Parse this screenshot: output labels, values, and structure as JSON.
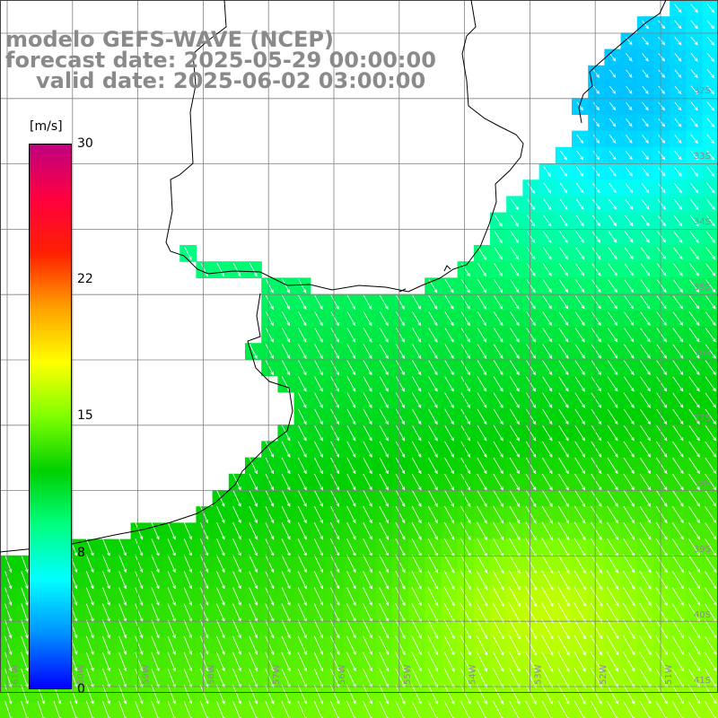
{
  "title": {
    "line1": "modelo GEFS-WAVE (NCEP)",
    "line2": "forecast date: 2025-05-29 00:00:00",
    "line3": "valid date: 2025-06-02 03:00:00"
  },
  "colorbar": {
    "unit": "[m/s]",
    "ticks": [
      "30",
      "22",
      "15",
      "8",
      "0"
    ],
    "tick_values": [
      30,
      22,
      15,
      8,
      0
    ],
    "range": [
      0,
      30
    ],
    "colors": [
      "#0000ff",
      "#0090ff",
      "#00ffff",
      "#00ff80",
      "#00d000",
      "#80ff00",
      "#ffff00",
      "#ffa000",
      "#ff2000",
      "#ff0040",
      "#c00080"
    ]
  },
  "grid": {
    "lat_labels": [
      "32S",
      "33S",
      "34S",
      "35S",
      "36S",
      "37S",
      "38S",
      "39S",
      "40S",
      "41S"
    ],
    "lon_labels": [
      "61W",
      "60W",
      "59W",
      "58W",
      "57W",
      "56W",
      "55W",
      "54W",
      "53W",
      "52W",
      "51W"
    ]
  },
  "colors": {
    "land": "#ffffff",
    "grid": "#808080",
    "coast": "#000000",
    "title": "#8a8a8a",
    "arrow": "#ffffff"
  }
}
